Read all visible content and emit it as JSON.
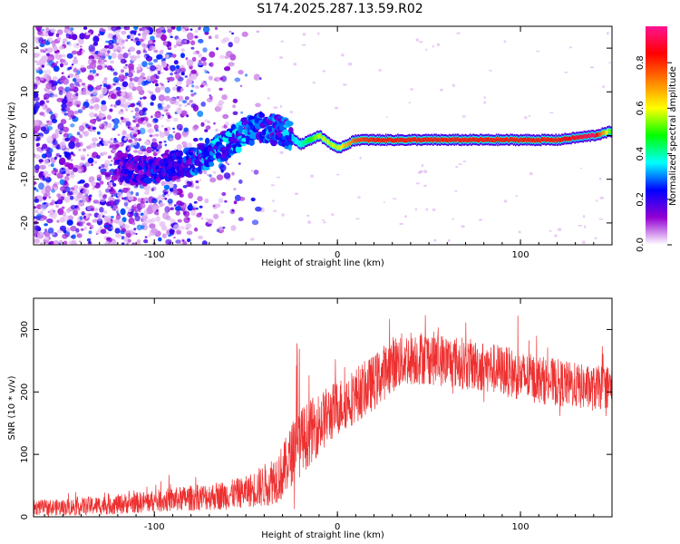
{
  "title": "S174.2025.287.13.59.R02",
  "chart_data": [
    {
      "type": "heatmap",
      "name": "spectrogram",
      "xlabel": "Height of straight line (km)",
      "ylabel": "Frequency (Hz)",
      "xlim": [
        -166,
        150
      ],
      "ylim": [
        -25,
        25
      ],
      "xticks": [
        -100,
        0,
        100
      ],
      "xtick_labels": [
        "-100",
        "0",
        "100"
      ],
      "yticks": [
        -20,
        -10,
        0,
        10,
        20
      ],
      "ytick_labels": [
        "-20",
        "-10",
        "0",
        "10",
        "20"
      ],
      "colorbar": {
        "label": "Normalized spectral amplitude",
        "range": [
          0,
          0.96
        ],
        "ticks": [
          0.0,
          0.2,
          0.4,
          0.6,
          0.8
        ],
        "tick_labels": [
          "0.0",
          "0.2",
          "0.4",
          "0.6",
          "0.8"
        ],
        "stops": [
          "#ffffff",
          "#9400d3",
          "#0000ff",
          "#00ffff",
          "#00ff00",
          "#ffff00",
          "#ff7f00",
          "#ff0000",
          "#ff1493"
        ]
      },
      "ridge": {
        "x": [
          -120,
          -110,
          -100,
          -90,
          -80,
          -70,
          -60,
          -50,
          -40,
          -30,
          -20,
          -10,
          0,
          10,
          20,
          40,
          60,
          80,
          100,
          120,
          140,
          150
        ],
        "freq": [
          -7,
          -8,
          -8,
          -7,
          -6,
          -4,
          -2,
          1,
          2,
          1,
          -2,
          0,
          -3,
          -1,
          -1,
          -1,
          -1,
          -1,
          -1,
          -1,
          0,
          1
        ],
        "amplitude": [
          0.2,
          0.25,
          0.25,
          0.25,
          0.3,
          0.35,
          0.35,
          0.35,
          0.3,
          0.3,
          0.4,
          0.6,
          0.6,
          0.8,
          0.85,
          0.85,
          0.85,
          0.85,
          0.85,
          0.85,
          0.95,
          0.5
        ]
      }
    },
    {
      "type": "line",
      "name": "snr",
      "xlabel": "Height of straight line (km)",
      "ylabel": "SNR (10 * v/v)",
      "xlim": [
        -166,
        150
      ],
      "ylim": [
        0,
        350
      ],
      "xticks": [
        -100,
        0,
        100
      ],
      "xtick_labels": [
        "-100",
        "0",
        "100"
      ],
      "yticks": [
        0,
        100,
        200,
        300
      ],
      "ytick_labels": [
        "0",
        "100",
        "200",
        "300"
      ],
      "color": "#ee3030",
      "trend": {
        "x": [
          -166,
          -150,
          -120,
          -100,
          -80,
          -60,
          -50,
          -40,
          -30,
          -25,
          -20,
          -10,
          0,
          10,
          20,
          30,
          40,
          50,
          60,
          70,
          80,
          90,
          100,
          110,
          120,
          130,
          140,
          150
        ],
        "y": [
          15,
          15,
          20,
          25,
          30,
          35,
          40,
          50,
          70,
          100,
          120,
          150,
          175,
          195,
          215,
          245,
          255,
          255,
          250,
          245,
          240,
          235,
          225,
          220,
          215,
          210,
          205,
          210
        ]
      },
      "spread": {
        "x": [
          -166,
          -100,
          -50,
          -30,
          -20,
          0,
          30,
          100,
          150
        ],
        "y": [
          12,
          18,
          25,
          45,
          55,
          45,
          45,
          40,
          35
        ]
      }
    }
  ]
}
